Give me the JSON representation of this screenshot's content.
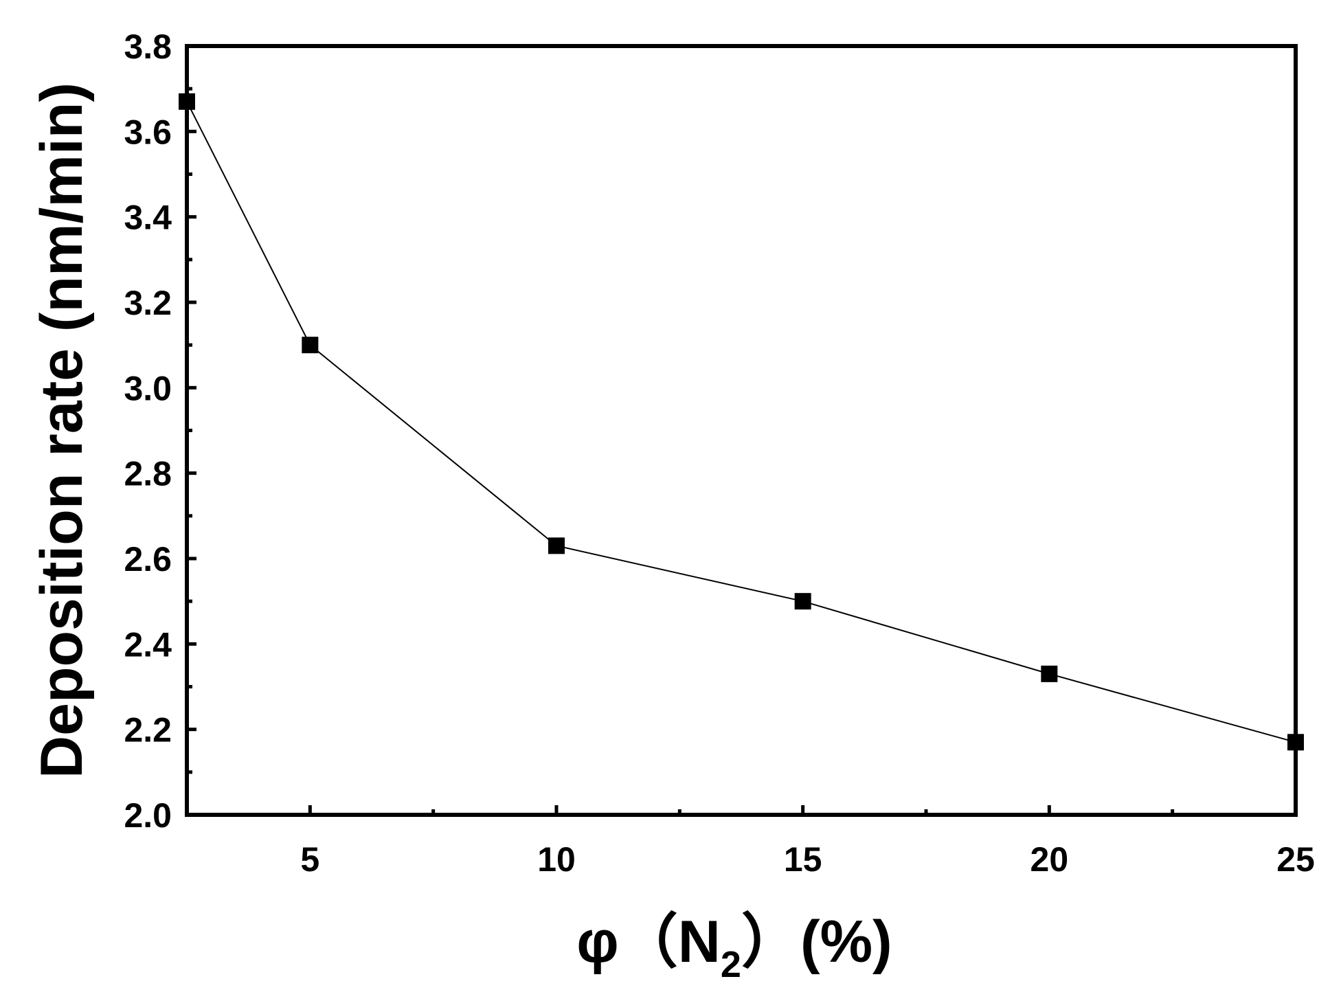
{
  "chart_data": {
    "type": "line",
    "title": "",
    "xlabel": {
      "prefix": "φ（N",
      "subscript": "2",
      "suffix": "）(%)"
    },
    "ylabel": "Deposition rate (nm/min)",
    "xlim": [
      2.5,
      25
    ],
    "ylim": [
      2.0,
      3.8
    ],
    "x_ticks": [
      5,
      10,
      15,
      20,
      25
    ],
    "x_tick_labels": [
      "5",
      "10",
      "15",
      "20",
      "25"
    ],
    "x_minor_ticks": [
      7.5,
      12.5,
      17.5,
      22.5
    ],
    "y_ticks": [
      2.0,
      2.2,
      2.4,
      2.6,
      2.8,
      3.0,
      3.2,
      3.4,
      3.6,
      3.8
    ],
    "y_tick_labels": [
      "2.0",
      "2.2",
      "2.4",
      "2.6",
      "2.8",
      "3.0",
      "3.2",
      "3.4",
      "3.6",
      "3.8"
    ],
    "y_minor_ticks": [
      2.1,
      2.3,
      2.5,
      2.7,
      2.9,
      3.1,
      3.3,
      3.5,
      3.7
    ],
    "grid": false,
    "legend": "none",
    "series": [
      {
        "x": [
          2.5,
          5,
          10,
          15,
          20,
          25
        ],
        "y": [
          3.67,
          3.1,
          2.63,
          2.5,
          2.33,
          2.17
        ],
        "marker": "square",
        "color": "#000000"
      }
    ]
  }
}
